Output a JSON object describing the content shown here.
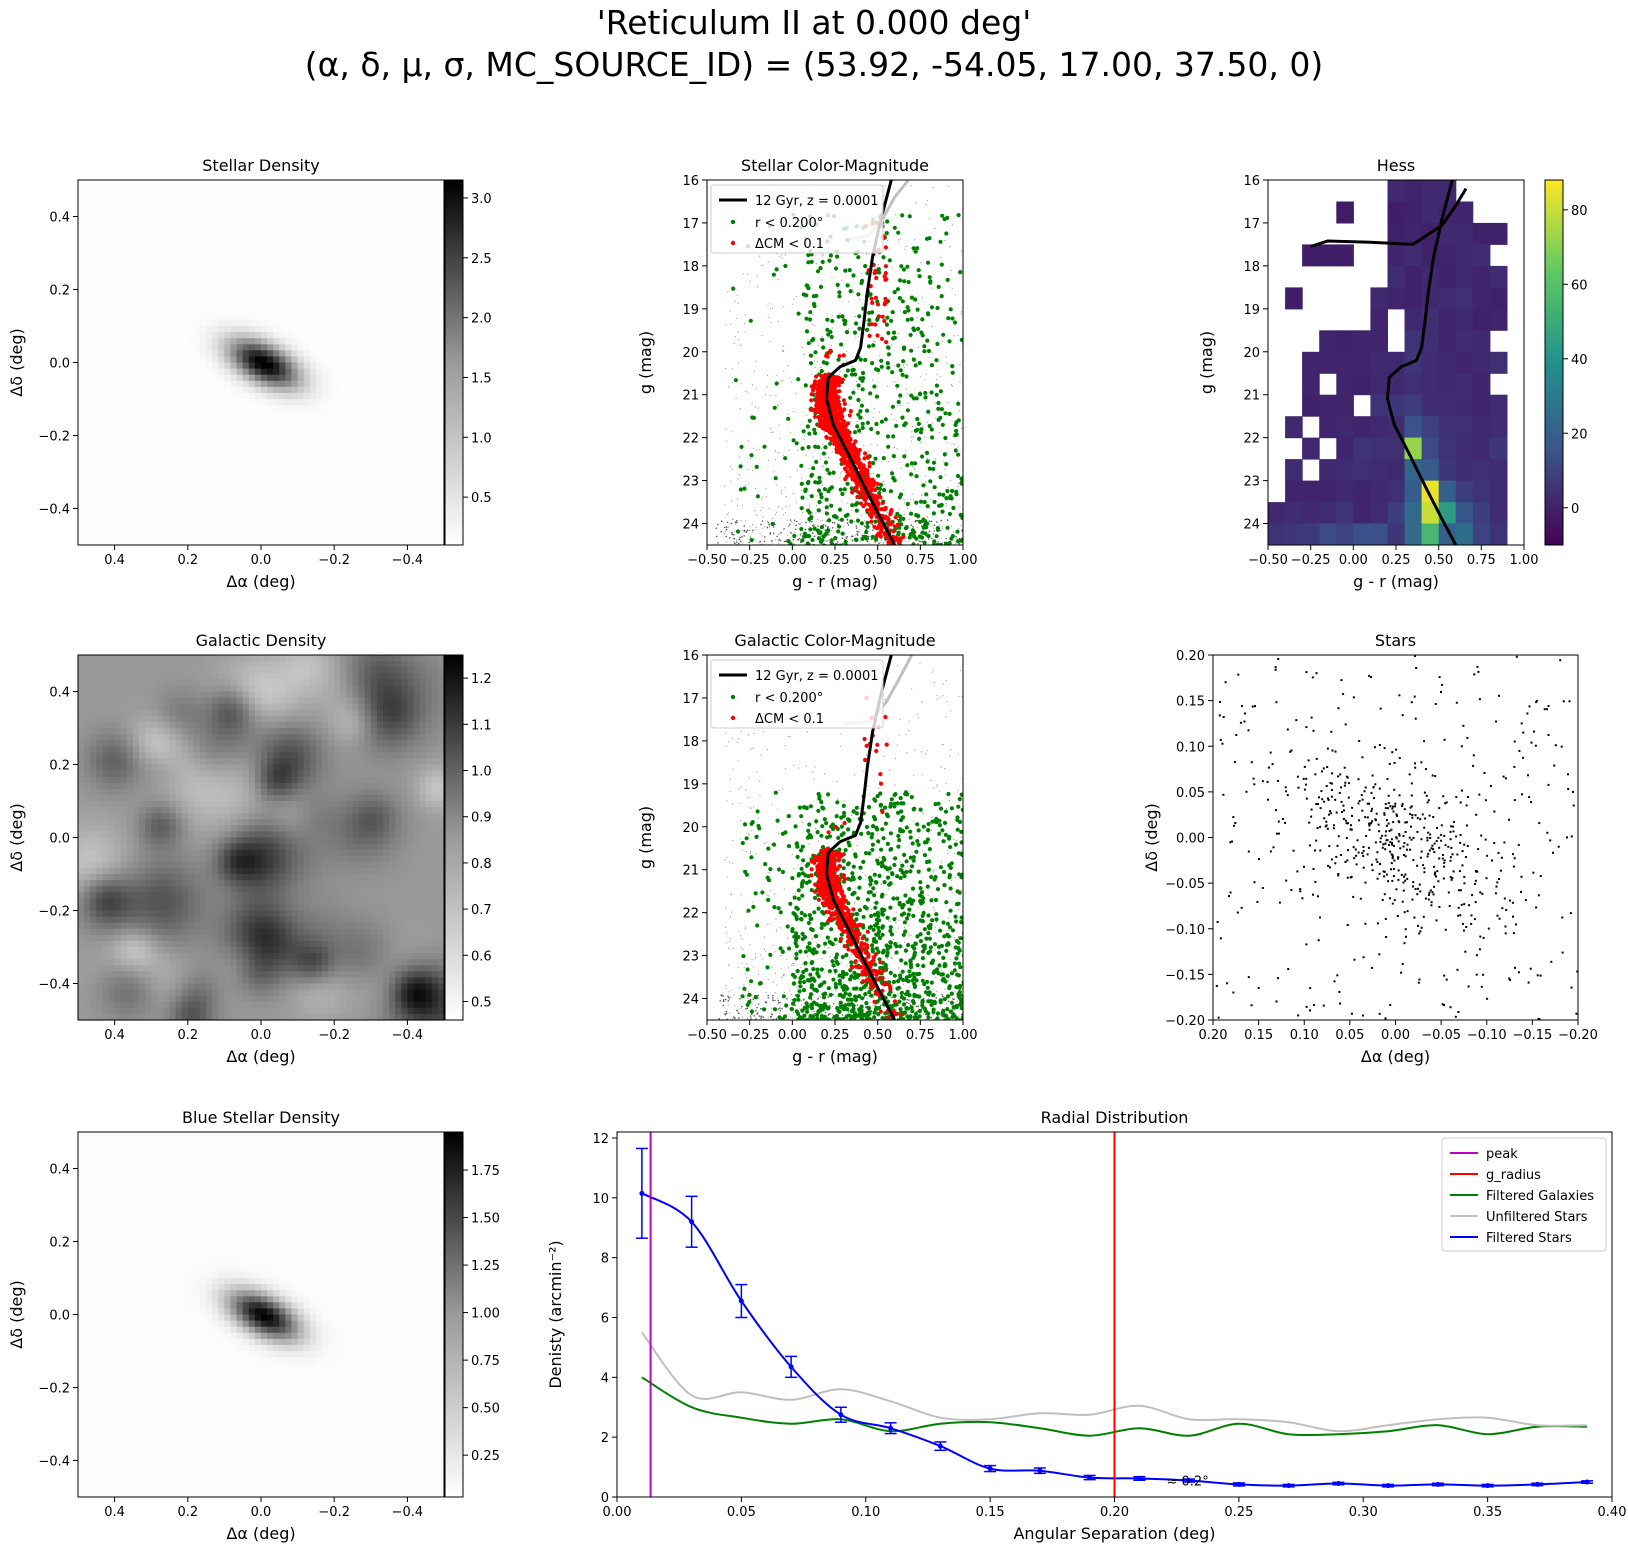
{
  "figure": {
    "title_line1": "'Reticulum II at 0.000 deg'",
    "title_line2": "(α, δ, μ, σ, MC_SOURCE_ID) = (53.92, -54.05, 17.00, 37.50, 0)"
  },
  "chart_data": [
    {
      "id": "stellar_density",
      "type": "heatmap",
      "title": "Stellar Density",
      "xlabel": "Δα (deg)",
      "ylabel": "Δδ (deg)",
      "xlim": [
        0.5,
        -0.5
      ],
      "ylim": [
        -0.5,
        0.5
      ],
      "xticks": [
        "0.4",
        "0.2",
        "0.0",
        "−0.2",
        "−0.4"
      ],
      "yticks": [
        "−0.4",
        "−0.2",
        "0.0",
        "0.2",
        "0.4"
      ],
      "colormap": "gray_r",
      "colorbar": {
        "ticks": [
          "0.5",
          "1.0",
          "1.5",
          "2.0",
          "2.5",
          "3.0"
        ],
        "range": [
          0.1,
          3.15
        ]
      },
      "blobs": [
        {
          "x": 0.0,
          "y": 0.005,
          "sx": 0.07,
          "sy": 0.035,
          "angle_deg": 28,
          "amp": 3.1
        }
      ],
      "background_level": 0.12
    },
    {
      "id": "stellar_cmd",
      "type": "scatter",
      "title": "Stellar Color-Magnitude",
      "xlabel": "g - r (mag)",
      "ylabel": "g (mag)",
      "xlim": [
        -0.5,
        1.0
      ],
      "ylim": [
        24.5,
        16
      ],
      "xticks": [
        "−0.50",
        "−0.25",
        "0.00",
        "0.25",
        "0.50",
        "0.75",
        "1.00"
      ],
      "yticks": [
        "16",
        "17",
        "18",
        "19",
        "20",
        "21",
        "22",
        "23",
        "24"
      ],
      "legend": {
        "position": "upper-left",
        "entries": [
          "12 Gyr, z = 0.0001",
          "r < 0.200°",
          "ΔCM < 0.1"
        ]
      },
      "colors": {
        "isochrone": "#000000",
        "r_cut": "#008000",
        "dcm": "#ff0000",
        "field": "#999999",
        "hb": "#c0c0c0"
      }
    },
    {
      "id": "hess",
      "type": "heatmap",
      "title": "Hess",
      "xlabel": "g - r (mag)",
      "ylabel": "g (mag)",
      "xlim": [
        -0.5,
        1.0
      ],
      "ylim": [
        24.5,
        16
      ],
      "xticks": [
        "−0.50",
        "−0.25",
        "0.00",
        "0.25",
        "0.50",
        "0.75",
        "1.00"
      ],
      "yticks": [
        "16",
        "17",
        "18",
        "19",
        "20",
        "21",
        "22",
        "23",
        "24"
      ],
      "colormap": "viridis",
      "colorbar": {
        "ticks": [
          "0",
          "20",
          "40",
          "60",
          "80"
        ],
        "range": [
          -10,
          88
        ]
      },
      "bin_x_edges_start": -0.5,
      "bin_x_width": 0.1,
      "bin_y_start": 16,
      "bin_y_height": 0.5,
      "cells": [
        [
          null,
          null,
          null,
          null,
          null,
          null,
          null,
          2,
          1,
          2,
          2,
          null,
          null,
          null,
          null
        ],
        [
          null,
          null,
          null,
          null,
          -2,
          null,
          null,
          -1,
          0,
          2,
          1,
          1,
          null,
          null,
          null
        ],
        [
          null,
          null,
          null,
          null,
          null,
          null,
          null,
          0,
          1,
          0,
          2,
          2,
          0,
          0,
          null
        ],
        [
          null,
          null,
          -1,
          -1,
          -1,
          null,
          null,
          1,
          3,
          0,
          1,
          2,
          3,
          null,
          null
        ],
        [
          null,
          null,
          null,
          null,
          null,
          null,
          null,
          3,
          0,
          2,
          0,
          2,
          1,
          3,
          null
        ],
        [
          null,
          -1,
          null,
          null,
          null,
          null,
          2,
          1,
          0,
          2,
          3,
          4,
          1,
          0,
          null
        ],
        [
          null,
          null,
          null,
          null,
          null,
          null,
          1,
          null,
          2,
          4,
          1,
          2,
          0,
          1,
          null
        ],
        [
          null,
          null,
          null,
          1,
          0,
          1,
          1,
          null,
          5,
          4,
          1,
          3,
          2,
          null,
          null
        ],
        [
          null,
          null,
          1,
          1,
          1,
          1,
          2,
          2,
          6,
          3,
          2,
          1,
          2,
          4,
          null
        ],
        [
          null,
          null,
          1,
          null,
          1,
          0,
          2,
          2,
          4,
          3,
          2,
          3,
          1,
          null,
          null
        ],
        [
          null,
          null,
          0,
          1,
          1,
          null,
          5,
          6,
          8,
          3,
          3,
          2,
          1,
          3,
          null
        ],
        [
          null,
          2,
          null,
          1,
          2,
          1,
          2,
          3,
          15,
          9,
          4,
          4,
          2,
          3,
          null
        ],
        [
          null,
          null,
          2,
          null,
          1,
          5,
          4,
          4,
          72,
          12,
          5,
          3,
          2,
          6,
          null
        ],
        [
          null,
          3,
          null,
          2,
          3,
          4,
          3,
          2,
          22,
          18,
          6,
          3,
          4,
          3,
          null
        ],
        [
          null,
          1,
          1,
          1,
          2,
          1,
          2,
          4,
          18,
          85,
          19,
          8,
          5,
          3,
          null
        ],
        [
          2,
          3,
          2,
          3,
          5,
          1,
          3,
          8,
          24,
          80,
          44,
          16,
          8,
          3,
          null
        ],
        [
          5,
          6,
          7,
          12,
          10,
          14,
          14,
          6,
          24,
          55,
          20,
          25,
          10,
          5,
          null
        ]
      ]
    },
    {
      "id": "galactic_density",
      "type": "heatmap",
      "title": "Galactic Density",
      "xlabel": "Δα (deg)",
      "ylabel": "Δδ (deg)",
      "xlim": [
        0.5,
        -0.5
      ],
      "ylim": [
        -0.5,
        0.5
      ],
      "xticks": [
        "0.4",
        "0.2",
        "0.0",
        "−0.2",
        "−0.4"
      ],
      "yticks": [
        "−0.4",
        "−0.2",
        "0.0",
        "0.2",
        "0.4"
      ],
      "colormap": "gray_r",
      "colorbar": {
        "ticks": [
          "0.5",
          "0.6",
          "0.7",
          "0.8",
          "0.9",
          "1.0",
          "1.1",
          "1.2"
        ],
        "range": [
          0.46,
          1.25
        ]
      }
    },
    {
      "id": "galactic_cmd",
      "type": "scatter",
      "title": "Galactic Color-Magnitude",
      "xlabel": "g - r (mag)",
      "ylabel": "g (mag)",
      "xlim": [
        -0.5,
        1.0
      ],
      "ylim": [
        24.5,
        16
      ],
      "xticks": [
        "−0.50",
        "−0.25",
        "0.00",
        "0.25",
        "0.50",
        "0.75",
        "1.00"
      ],
      "yticks": [
        "16",
        "17",
        "18",
        "19",
        "20",
        "21",
        "22",
        "23",
        "24"
      ],
      "legend": {
        "position": "upper-left",
        "entries": [
          "12 Gyr, z = 0.0001",
          "r < 0.200°",
          "ΔCM < 0.1"
        ]
      }
    },
    {
      "id": "stars",
      "type": "scatter",
      "title": "Stars",
      "xlabel": "Δα (deg)",
      "ylabel": "Δδ (deg)",
      "xlim": [
        0.2,
        -0.2
      ],
      "ylim": [
        -0.2,
        0.2
      ],
      "xticks": [
        "0.20",
        "0.15",
        "0.10",
        "0.05",
        "0.00",
        "−0.05",
        "−0.10",
        "−0.15",
        "−0.20"
      ],
      "yticks": [
        "−0.20",
        "−0.15",
        "−0.10",
        "−0.05",
        "0.00",
        "0.05",
        "0.10",
        "0.15",
        "0.20"
      ],
      "cluster": {
        "x": 0.0,
        "y": 0.0,
        "sx": 0.07,
        "sy": 0.035,
        "angle_deg": 28
      }
    },
    {
      "id": "radial",
      "type": "line",
      "title": "Radial Distribution",
      "xlabel": "Angular Separation (deg)",
      "ylabel": "Denisty (arcmin⁻²)",
      "xlim": [
        0.0,
        0.4
      ],
      "ylim": [
        0,
        12.2
      ],
      "xticks": [
        "0.00",
        "0.05",
        "0.10",
        "0.15",
        "0.20",
        "0.25",
        "0.30",
        "0.35",
        "0.40"
      ],
      "yticks": [
        "0",
        "2",
        "4",
        "6",
        "8",
        "10",
        "12"
      ],
      "annotation": "≈ 0.2°",
      "legend": {
        "position": "upper-right"
      },
      "vlines": [
        {
          "name": "peak",
          "x": 0.0135,
          "color": "#bf00bf"
        },
        {
          "name": "g_radius",
          "x": 0.2,
          "color": "#ff0000"
        }
      ],
      "series": [
        {
          "name": "Filtered Galaxies",
          "color": "#008000",
          "x": [
            0.01,
            0.03,
            0.05,
            0.07,
            0.09,
            0.11,
            0.13,
            0.15,
            0.17,
            0.19,
            0.21,
            0.23,
            0.25,
            0.27,
            0.29,
            0.31,
            0.33,
            0.35,
            0.37,
            0.39
          ],
          "y": [
            4.0,
            3.0,
            2.65,
            2.45,
            2.6,
            2.2,
            2.45,
            2.5,
            2.3,
            2.05,
            2.3,
            2.05,
            2.45,
            2.1,
            2.1,
            2.2,
            2.4,
            2.1,
            2.35,
            2.35
          ]
        },
        {
          "name": "Unfiltered Stars",
          "color": "#bfbfbf",
          "x": [
            0.01,
            0.03,
            0.05,
            0.07,
            0.09,
            0.11,
            0.13,
            0.15,
            0.17,
            0.19,
            0.21,
            0.23,
            0.25,
            0.27,
            0.29,
            0.31,
            0.33,
            0.35,
            0.37,
            0.39
          ],
          "y": [
            5.5,
            3.4,
            3.5,
            3.25,
            3.6,
            3.2,
            2.65,
            2.6,
            2.8,
            2.75,
            3.05,
            2.6,
            2.6,
            2.5,
            2.2,
            2.4,
            2.6,
            2.65,
            2.4,
            2.4
          ]
        },
        {
          "name": "Filtered Stars",
          "color": "#0000ff",
          "x": [
            0.01,
            0.03,
            0.05,
            0.07,
            0.09,
            0.11,
            0.13,
            0.15,
            0.17,
            0.19,
            0.21,
            0.23,
            0.25,
            0.27,
            0.29,
            0.31,
            0.33,
            0.35,
            0.37,
            0.39
          ],
          "y": [
            10.15,
            9.2,
            6.55,
            4.35,
            2.75,
            2.3,
            1.7,
            0.95,
            0.88,
            0.65,
            0.62,
            0.55,
            0.42,
            0.38,
            0.45,
            0.38,
            0.42,
            0.38,
            0.42,
            0.5
          ],
          "yerr": [
            1.5,
            0.85,
            0.55,
            0.35,
            0.25,
            0.18,
            0.14,
            0.1,
            0.09,
            0.07,
            0.06,
            0.05,
            0.05,
            0.04,
            0.04,
            0.04,
            0.04,
            0.04,
            0.04,
            0.04
          ]
        }
      ]
    }
  ]
}
